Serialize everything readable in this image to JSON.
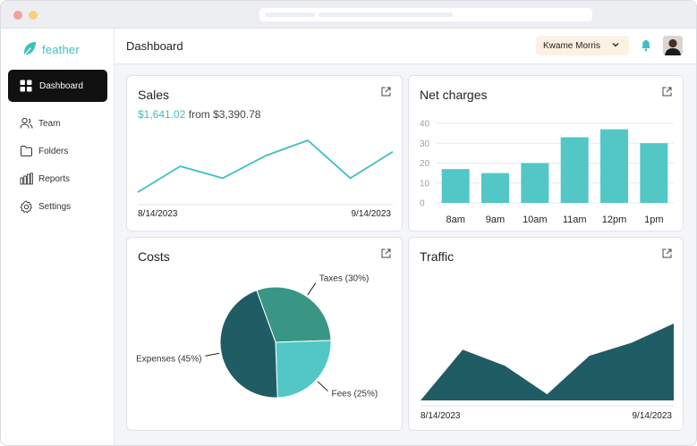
{
  "app": {
    "name": "feather"
  },
  "sidebar": {
    "items": [
      {
        "label": "Dashboard",
        "icon": "grid-icon",
        "active": true
      },
      {
        "label": "Team",
        "icon": "users-icon"
      },
      {
        "label": "Folders",
        "icon": "folder-icon"
      },
      {
        "label": "Reports",
        "icon": "bar-chart-icon"
      },
      {
        "label": "Settings",
        "icon": "gear-icon"
      }
    ]
  },
  "header": {
    "title": "Dashboard",
    "user_name": "Kwame Morris"
  },
  "colors": {
    "accent": "#3fbfbf",
    "bar": "#53c6c6",
    "dark_teal": "#1f5c64",
    "mid_teal": "#399684"
  },
  "cards": {
    "sales": {
      "title": "Sales",
      "amount": "$1,641.02",
      "from_text": "from $3,390.78",
      "start_date": "8/14/2023",
      "end_date": "9/14/2023"
    },
    "net_charges": {
      "title": "Net charges"
    },
    "costs": {
      "title": "Costs"
    },
    "traffic": {
      "title": "Traffic",
      "start_date": "8/14/2023",
      "end_date": "9/14/2023"
    }
  },
  "chart_data": [
    {
      "type": "line",
      "title": "Sales",
      "values": [
        0,
        0.5,
        0.27,
        0.7,
        1.0,
        0.27,
        0.78
      ],
      "x_range": [
        "8/14/2023",
        "9/14/2023"
      ]
    },
    {
      "type": "bar",
      "title": "Net charges",
      "categories": [
        "8am",
        "9am",
        "10am",
        "11am",
        "12pm",
        "1pm"
      ],
      "values": [
        17,
        15,
        20,
        33,
        37,
        30
      ],
      "ylim": [
        0,
        40
      ],
      "yticks": [
        0,
        10,
        20,
        30,
        40
      ],
      "grid": true
    },
    {
      "type": "pie",
      "title": "Costs",
      "slices": [
        {
          "label": "Taxes (30%)",
          "value": 30,
          "color": "#399684"
        },
        {
          "label": "Fees (25%)",
          "value": 25,
          "color": "#53c6c6"
        },
        {
          "label": "Expenses (45%)",
          "value": 45,
          "color": "#1f5c64"
        }
      ]
    },
    {
      "type": "area",
      "title": "Traffic",
      "values": [
        0,
        0.66,
        0.45,
        0.08,
        0.58,
        0.75,
        1.0
      ],
      "x_range": [
        "8/14/2023",
        "9/14/2023"
      ]
    }
  ]
}
